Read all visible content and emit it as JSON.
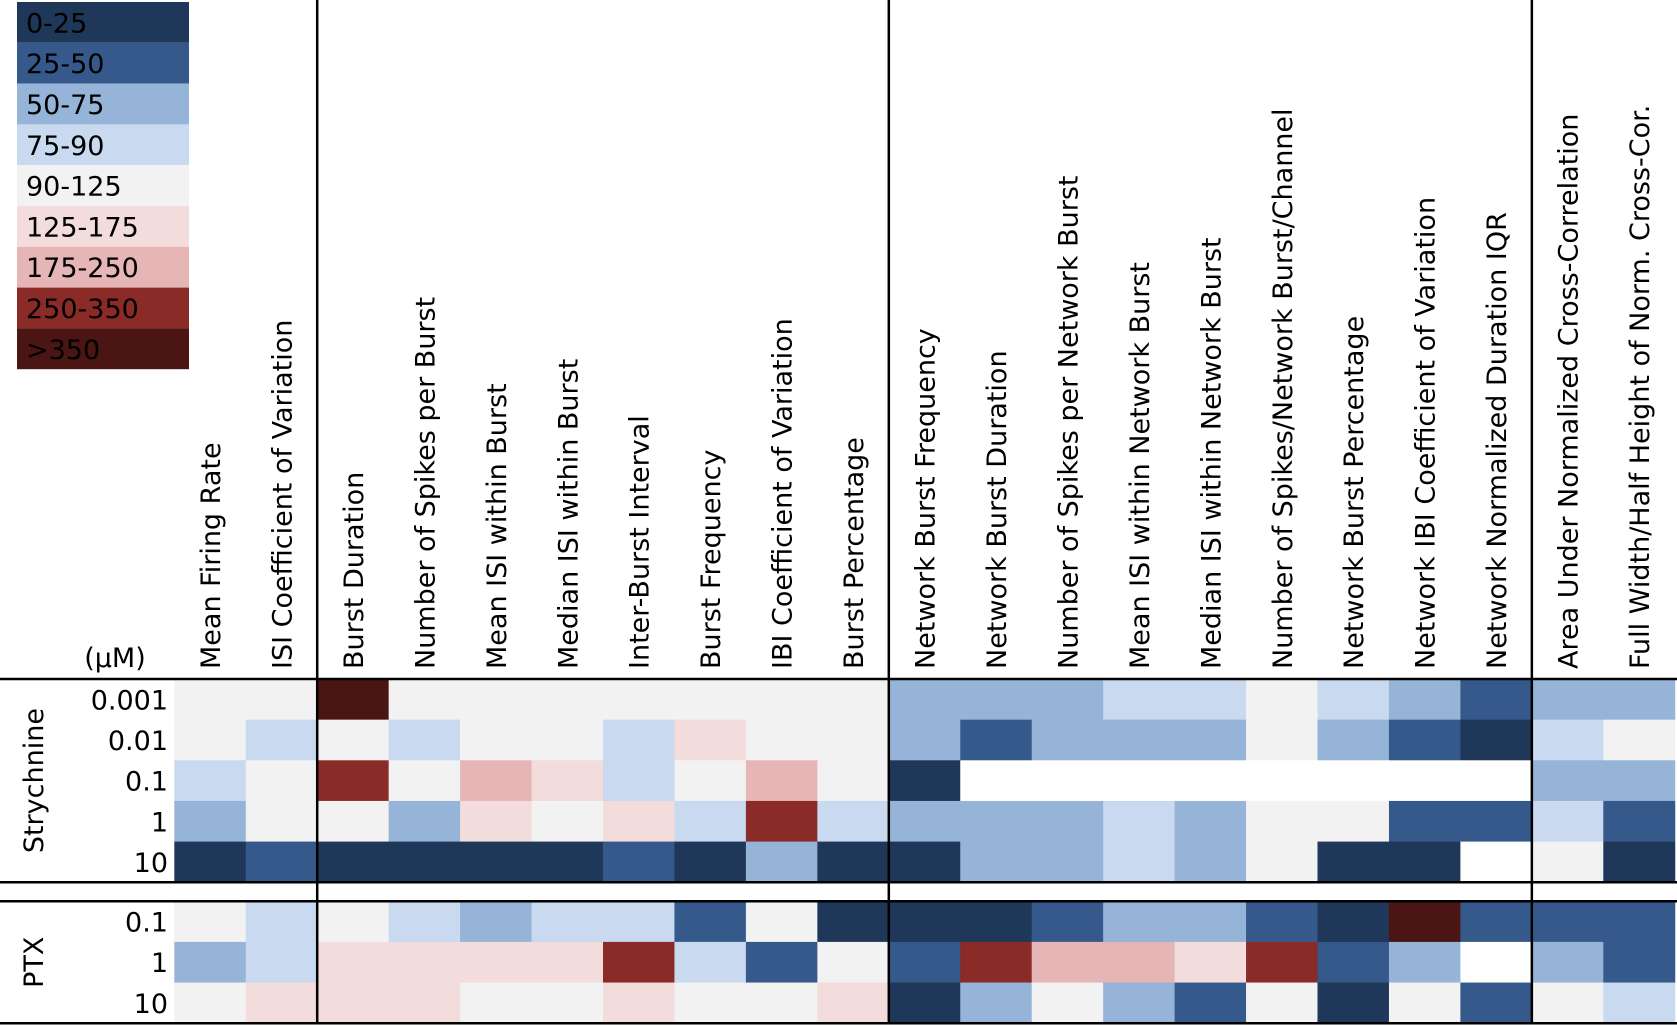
{
  "legend": [
    {
      "label": "0-25",
      "color": "#1f3758"
    },
    {
      "label": "25-50",
      "color": "#36598c"
    },
    {
      "label": "50-75",
      "color": "#96b3d8"
    },
    {
      "label": "75-90",
      "color": "#c8d9f0"
    },
    {
      "label": "90-125",
      "color": "#f2f2f2"
    },
    {
      "label": "125-175",
      "color": "#f3dcdc"
    },
    {
      "label": "175-250",
      "color": "#e6b5b5"
    },
    {
      "label": ">350",
      "color": "#4a1513"
    }
  ],
  "legend_extra": {
    "label": "250-350",
    "color": "#8a2b27"
  },
  "unit": "(μM)",
  "headers": [
    "Mean Firing Rate",
    "ISI Coefficient of Variation",
    "Burst Duration",
    "Number of Spikes per Burst",
    "Mean ISI within Burst",
    "Median ISI within Burst",
    "Inter-Burst Interval",
    "Burst Frequency",
    "IBI Coefficient of Variation",
    "Burst Percentage",
    "Network Burst Frequency",
    "Network Burst Duration",
    "Number of Spikes per Network Burst",
    "Mean ISI within Network Burst",
    "Median ISI within Network Burst",
    "Number of Spikes/Network Burst/Channel",
    "Network Burst Percentage",
    "Network IBI Coefficient of Variation",
    "Network Normalized Duration IQR",
    "Area Under Normalized Cross-Correlation",
    "Full Width/Half Height of Norm. Cross-Cor."
  ],
  "groups": [
    {
      "name": "Strychnine",
      "rows": [
        {
          "conc": "0.001",
          "cells": [
            "90-125",
            "90-125",
            ">350",
            "90-125",
            "90-125",
            "90-125",
            "90-125",
            "90-125",
            "90-125",
            "90-125",
            "50-75",
            "50-75",
            "50-75",
            "75-90",
            "75-90",
            "90-125",
            "75-90",
            "50-75",
            "25-50",
            "50-75",
            "50-75"
          ]
        },
        {
          "conc": "0.01",
          "cells": [
            "90-125",
            "75-90",
            "90-125",
            "75-90",
            "90-125",
            "90-125",
            "75-90",
            "125-175",
            "90-125",
            "90-125",
            "50-75",
            "25-50",
            "50-75",
            "50-75",
            "50-75",
            "90-125",
            "50-75",
            "25-50",
            "0-25",
            "75-90",
            "90-125"
          ]
        },
        {
          "conc": "0.1",
          "cells": [
            "75-90",
            "90-125",
            "250-350",
            "90-125",
            "175-250",
            "125-175",
            "75-90",
            "90-125",
            "175-250",
            "90-125",
            "0-25",
            null,
            null,
            null,
            null,
            null,
            null,
            null,
            null,
            "50-75",
            "50-75"
          ]
        },
        {
          "conc": "1",
          "cells": [
            "50-75",
            "90-125",
            "90-125",
            "50-75",
            "125-175",
            "90-125",
            "125-175",
            "75-90",
            "250-350",
            "75-90",
            "50-75",
            "50-75",
            "50-75",
            "75-90",
            "50-75",
            "90-125",
            "90-125",
            "25-50",
            "25-50",
            "75-90",
            "25-50"
          ]
        },
        {
          "conc": "10",
          "cells": [
            "0-25",
            "25-50",
            "0-25",
            "0-25",
            "0-25",
            "0-25",
            "25-50",
            "0-25",
            "50-75",
            "0-25",
            "0-25",
            "50-75",
            "50-75",
            "75-90",
            "50-75",
            "90-125",
            "0-25",
            "0-25",
            null,
            "90-125",
            "0-25"
          ]
        }
      ]
    },
    {
      "name": "PTX",
      "rows": [
        {
          "conc": "0.1",
          "cells": [
            "90-125",
            "75-90",
            "90-125",
            "75-90",
            "50-75",
            "75-90",
            "75-90",
            "25-50",
            "90-125",
            "0-25",
            "0-25",
            "0-25",
            "25-50",
            "50-75",
            "50-75",
            "25-50",
            "0-25",
            ">350",
            "25-50",
            "25-50",
            "25-50"
          ]
        },
        {
          "conc": "1",
          "cells": [
            "50-75",
            "75-90",
            "125-175",
            "125-175",
            "125-175",
            "125-175",
            "250-350",
            "75-90",
            "25-50",
            "90-125",
            "25-50",
            "250-350",
            "175-250",
            "175-250",
            "125-175",
            "250-350",
            "25-50",
            "50-75",
            null,
            "50-75",
            "25-50"
          ]
        },
        {
          "conc": "10",
          "cells": [
            "90-125",
            "125-175",
            "125-175",
            "125-175",
            "90-125",
            "90-125",
            "125-175",
            "90-125",
            "90-125",
            "125-175",
            "0-25",
            "50-75",
            "90-125",
            "50-75",
            "25-50",
            "90-125",
            "0-25",
            "90-125",
            "25-50",
            "90-125",
            "75-90"
          ]
        }
      ]
    }
  ]
}
